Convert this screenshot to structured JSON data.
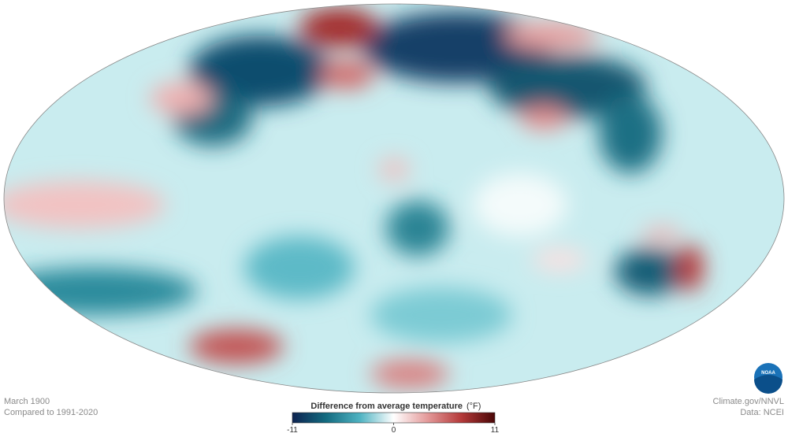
{
  "footer": {
    "date": "March 1900",
    "baseline": "Compared to 1991-2020",
    "credit": "Climate.gov/NNVL",
    "source": "Data: NCEI",
    "logo": "NOAA"
  },
  "legend": {
    "title": "Difference from average temperature",
    "unit": "(°F)",
    "range": [
      -11,
      11
    ],
    "ticks": [
      -11,
      0,
      11
    ],
    "colors": [
      "#0d2350",
      "#136b80",
      "#4fb3c2",
      "#ffffff",
      "#e49a9a",
      "#b53a3a",
      "#4a0606"
    ]
  }
}
